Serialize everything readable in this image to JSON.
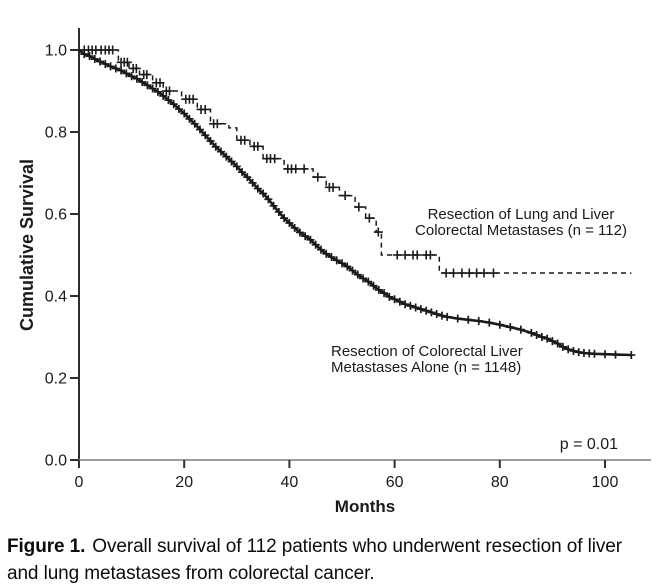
{
  "figure": {
    "caption_label": "Figure 1.",
    "caption_text": "Overall survival of 112 patients who underwent resection of liver and lung metastases from colorectal cancer."
  },
  "chart_data": {
    "type": "line",
    "subtype": "kaplan-meier-survival",
    "title": "",
    "xlabel": "Months",
    "ylabel": "Cumulative Survival",
    "xlim": [
      0,
      108
    ],
    "ylim": [
      0.0,
      1.05
    ],
    "xticks": [
      "0",
      "20",
      "40",
      "60",
      "80",
      "100"
    ],
    "xtick_values": [
      0,
      20,
      40,
      60,
      80,
      100
    ],
    "yticks": [
      "0.0",
      "0.2",
      "0.4",
      "0.6",
      "0.8",
      "1.0"
    ],
    "ytick_values": [
      0.0,
      0.2,
      0.4,
      0.6,
      0.8,
      1.0
    ],
    "grid": false,
    "legend_position": "inline-annotations",
    "annotation": "p = 0.01",
    "colors": {
      "curve": "#1a1a1a",
      "x_axis": "#9c9c9c",
      "y_axis": "#2e2e2e",
      "text": "#1a1a1a"
    },
    "series": [
      {
        "id": "lung-and-liver",
        "label_lines": [
          "Resection of Lung and Liver",
          "Colorectal Metastases (n = 112)"
        ],
        "style": "dashed",
        "censor_marker": "plus",
        "points": [
          [
            0,
            1.0
          ],
          [
            7.5,
            1.0
          ],
          [
            7.5,
            0.97
          ],
          [
            9.5,
            0.97
          ],
          [
            9.5,
            0.955
          ],
          [
            11.5,
            0.955
          ],
          [
            11.5,
            0.94
          ],
          [
            14,
            0.94
          ],
          [
            14,
            0.92
          ],
          [
            16,
            0.92
          ],
          [
            16,
            0.9
          ],
          [
            19.5,
            0.9
          ],
          [
            19.5,
            0.88
          ],
          [
            22.5,
            0.88
          ],
          [
            22.5,
            0.855
          ],
          [
            25,
            0.855
          ],
          [
            25,
            0.82
          ],
          [
            28.5,
            0.82
          ],
          [
            28.5,
            0.81
          ],
          [
            30,
            0.81
          ],
          [
            30,
            0.78
          ],
          [
            32.5,
            0.78
          ],
          [
            32.5,
            0.765
          ],
          [
            35,
            0.765
          ],
          [
            35,
            0.735
          ],
          [
            39,
            0.735
          ],
          [
            39,
            0.71
          ],
          [
            44.5,
            0.71
          ],
          [
            44.5,
            0.69
          ],
          [
            47,
            0.69
          ],
          [
            47,
            0.665
          ],
          [
            49.5,
            0.665
          ],
          [
            49.5,
            0.645
          ],
          [
            52.5,
            0.645
          ],
          [
            52.5,
            0.617
          ],
          [
            54.5,
            0.617
          ],
          [
            54.5,
            0.59
          ],
          [
            56.5,
            0.59
          ],
          [
            56.5,
            0.556
          ],
          [
            57.5,
            0.556
          ],
          [
            57.5,
            0.5
          ],
          [
            68.5,
            0.5
          ],
          [
            68.5,
            0.456
          ],
          [
            105,
            0.456
          ]
        ],
        "censors": [
          [
            1,
            1.0
          ],
          [
            1.8,
            1.0
          ],
          [
            2.5,
            1.0
          ],
          [
            3.2,
            1.0
          ],
          [
            4.2,
            1.0
          ],
          [
            5.0,
            1.0
          ],
          [
            5.7,
            1.0
          ],
          [
            6.4,
            1.0
          ],
          [
            8.0,
            0.97
          ],
          [
            8.6,
            0.97
          ],
          [
            9.2,
            0.97
          ],
          [
            10.3,
            0.955
          ],
          [
            10.9,
            0.955
          ],
          [
            12.3,
            0.94
          ],
          [
            12.9,
            0.94
          ],
          [
            14.7,
            0.92
          ],
          [
            15.4,
            0.92
          ],
          [
            16.6,
            0.9
          ],
          [
            17.2,
            0.9
          ],
          [
            20.3,
            0.88
          ],
          [
            21.0,
            0.88
          ],
          [
            21.7,
            0.88
          ],
          [
            23.2,
            0.855
          ],
          [
            24.0,
            0.855
          ],
          [
            25.6,
            0.82
          ],
          [
            26.3,
            0.82
          ],
          [
            30.8,
            0.78
          ],
          [
            31.5,
            0.78
          ],
          [
            33.3,
            0.765
          ],
          [
            34.0,
            0.765
          ],
          [
            35.7,
            0.735
          ],
          [
            36.4,
            0.735
          ],
          [
            37.2,
            0.735
          ],
          [
            39.7,
            0.71
          ],
          [
            40.4,
            0.71
          ],
          [
            41.2,
            0.71
          ],
          [
            42.8,
            0.71
          ],
          [
            45.4,
            0.69
          ],
          [
            47.6,
            0.665
          ],
          [
            48.3,
            0.665
          ],
          [
            50.6,
            0.645
          ],
          [
            53.2,
            0.617
          ],
          [
            55.2,
            0.59
          ],
          [
            56.9,
            0.556
          ],
          [
            60.5,
            0.5
          ],
          [
            62.0,
            0.5
          ],
          [
            63.5,
            0.5
          ],
          [
            64.3,
            0.5
          ],
          [
            66.0,
            0.5
          ],
          [
            66.8,
            0.5
          ],
          [
            69.8,
            0.456
          ],
          [
            71.2,
            0.456
          ],
          [
            72.8,
            0.456
          ],
          [
            74.2,
            0.456
          ],
          [
            75.6,
            0.456
          ],
          [
            77.0,
            0.456
          ],
          [
            78.8,
            0.456
          ]
        ]
      },
      {
        "id": "liver-alone",
        "label_lines": [
          "Resection of Colorectal Liver",
          "Metastases Alone (n = 1148)"
        ],
        "style": "solid",
        "censor_marker": "plus",
        "censor_at_points": true,
        "points": [
          [
            0,
            1.0
          ],
          [
            1,
            0.99
          ],
          [
            2,
            0.985
          ],
          [
            3,
            0.978
          ],
          [
            4,
            0.972
          ],
          [
            5,
            0.966
          ],
          [
            6,
            0.96
          ],
          [
            7,
            0.955
          ],
          [
            8,
            0.95
          ],
          [
            9,
            0.943
          ],
          [
            10,
            0.936
          ],
          [
            11,
            0.93
          ],
          [
            12,
            0.922
          ],
          [
            13,
            0.914
          ],
          [
            14,
            0.906
          ],
          [
            15,
            0.898
          ],
          [
            16,
            0.888
          ],
          [
            17,
            0.878
          ],
          [
            18,
            0.868
          ],
          [
            19,
            0.856
          ],
          [
            20,
            0.845
          ],
          [
            21,
            0.832
          ],
          [
            22,
            0.82
          ],
          [
            23,
            0.806
          ],
          [
            24,
            0.792
          ],
          [
            25,
            0.778
          ],
          [
            26,
            0.764
          ],
          [
            27,
            0.752
          ],
          [
            28,
            0.74
          ],
          [
            29,
            0.728
          ],
          [
            30,
            0.716
          ],
          [
            31,
            0.702
          ],
          [
            32,
            0.69
          ],
          [
            33,
            0.676
          ],
          [
            34,
            0.662
          ],
          [
            35,
            0.65
          ],
          [
            36,
            0.636
          ],
          [
            37,
            0.62
          ],
          [
            38,
            0.605
          ],
          [
            39,
            0.59
          ],
          [
            40,
            0.578
          ],
          [
            41,
            0.566
          ],
          [
            42,
            0.555
          ],
          [
            43,
            0.546
          ],
          [
            44,
            0.537
          ],
          [
            45,
            0.525
          ],
          [
            46,
            0.513
          ],
          [
            47,
            0.503
          ],
          [
            48,
            0.495
          ],
          [
            49,
            0.487
          ],
          [
            50,
            0.48
          ],
          [
            51,
            0.472
          ],
          [
            52,
            0.462
          ],
          [
            53,
            0.452
          ],
          [
            54,
            0.443
          ],
          [
            55,
            0.435
          ],
          [
            56,
            0.425
          ],
          [
            57,
            0.415
          ],
          [
            58,
            0.407
          ],
          [
            59,
            0.398
          ],
          [
            60,
            0.392
          ],
          [
            61,
            0.386
          ],
          [
            62,
            0.38
          ],
          [
            63,
            0.376
          ],
          [
            64,
            0.372
          ],
          [
            65,
            0.368
          ],
          [
            66,
            0.364
          ],
          [
            67,
            0.36
          ],
          [
            68,
            0.356
          ],
          [
            69,
            0.352
          ],
          [
            70,
            0.349
          ],
          [
            72,
            0.345
          ],
          [
            74,
            0.342
          ],
          [
            76,
            0.339
          ],
          [
            78,
            0.335
          ],
          [
            80,
            0.33
          ],
          [
            82,
            0.324
          ],
          [
            84,
            0.318
          ],
          [
            86,
            0.31
          ],
          [
            87,
            0.305
          ],
          [
            88,
            0.3
          ],
          [
            89,
            0.296
          ],
          [
            90,
            0.29
          ],
          [
            91,
            0.284
          ],
          [
            92,
            0.276
          ],
          [
            93,
            0.27
          ],
          [
            94,
            0.266
          ],
          [
            95,
            0.263
          ],
          [
            96,
            0.261
          ],
          [
            97,
            0.26
          ],
          [
            98,
            0.259
          ],
          [
            100,
            0.258
          ],
          [
            102,
            0.257
          ],
          [
            105,
            0.256
          ]
        ],
        "censors": []
      }
    ]
  }
}
